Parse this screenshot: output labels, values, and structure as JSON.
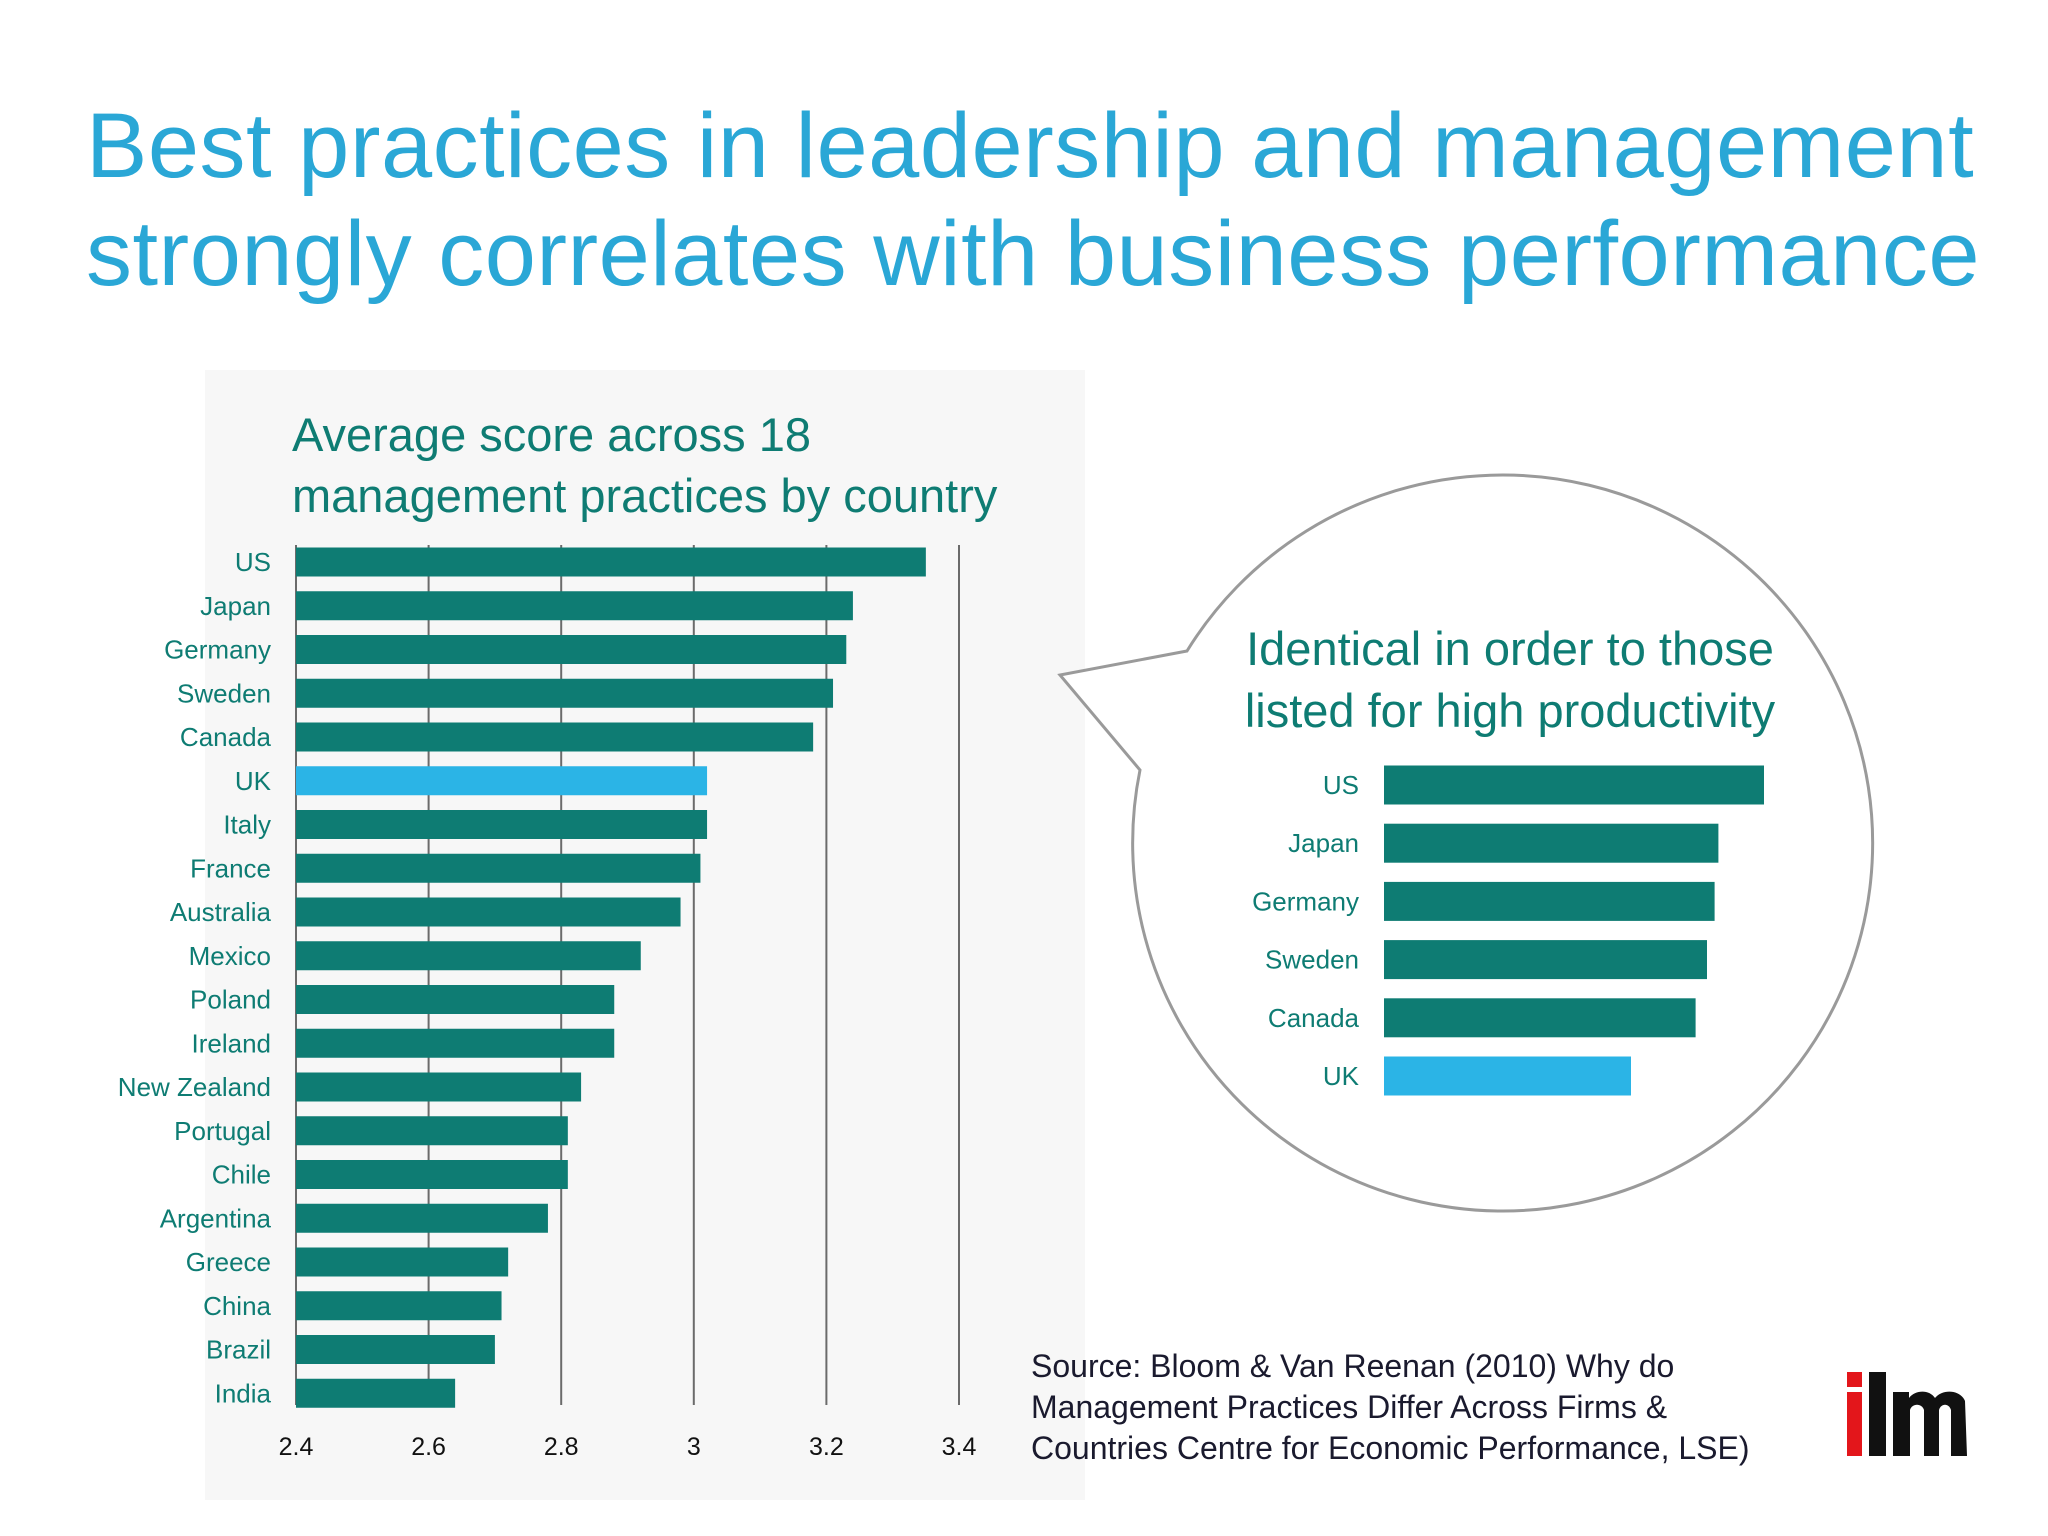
{
  "slide": {
    "title_line1": "Best practices in leadership and management",
    "title_line2": "strongly correlates with business performance",
    "source_line1": "Source: Bloom & Van Reenan (2010) Why do",
    "source_line2": "Management Practices Differ Across Firms &",
    "source_line3": "Countries Centre for Economic Performance, LSE)",
    "logo_text": "ilm"
  },
  "colors": {
    "title": "#2aa7d6",
    "teal": "#0e7c73",
    "highlight": "#2bb4e6",
    "logo_red": "#e3161b",
    "logo_black": "#111111"
  },
  "chart_data": [
    {
      "type": "bar",
      "orientation": "horizontal",
      "title_line1": "Average score across 18",
      "title_line2": "management practices by country",
      "categories": [
        "US",
        "Japan",
        "Germany",
        "Sweden",
        "Canada",
        "UK",
        "Italy",
        "France",
        "Australia",
        "Mexico",
        "Poland",
        "Ireland",
        "New Zealand",
        "Portugal",
        "Chile",
        "Argentina",
        "Greece",
        "China",
        "Brazil",
        "India"
      ],
      "values": [
        3.35,
        3.24,
        3.23,
        3.21,
        3.18,
        3.02,
        3.02,
        3.01,
        2.98,
        2.92,
        2.88,
        2.88,
        2.83,
        2.81,
        2.81,
        2.78,
        2.72,
        2.71,
        2.7,
        2.64
      ],
      "highlight": "UK",
      "xlim": [
        2.4,
        3.4
      ],
      "xticks": [
        "2.4",
        "2.6",
        "2.8",
        "3",
        "3.2",
        "3.4"
      ],
      "grid": "vertical"
    },
    {
      "type": "bar",
      "orientation": "horizontal",
      "title_line1": "Identical in order to those",
      "title_line2": "listed for high productivity",
      "categories": [
        "US",
        "Japan",
        "Germany",
        "Sweden",
        "Canada",
        "UK"
      ],
      "values": [
        1.0,
        0.88,
        0.87,
        0.85,
        0.82,
        0.65
      ],
      "highlight": "UK",
      "value_scale": "relative (no axis shown)"
    }
  ]
}
